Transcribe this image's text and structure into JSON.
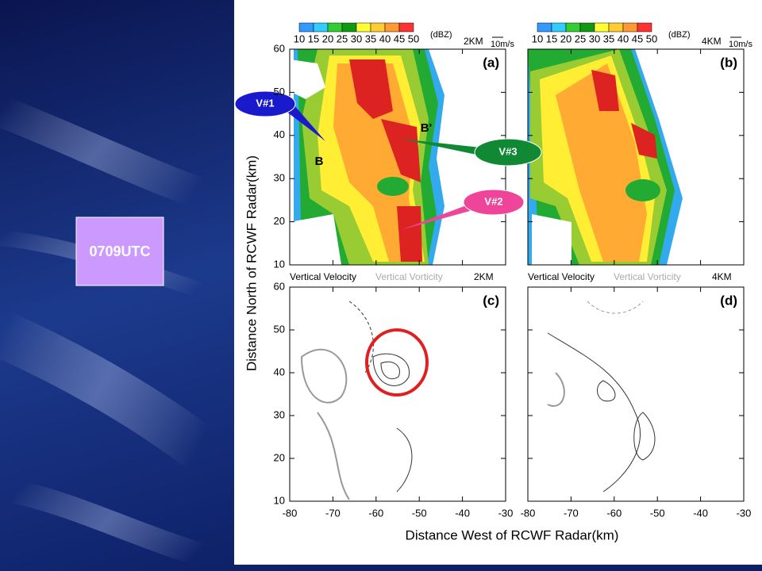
{
  "slide": {
    "time_label": "0709UTC"
  },
  "colorbar": {
    "labels": [
      "10",
      "15",
      "20",
      "25",
      "30",
      "35",
      "40",
      "45",
      "50"
    ],
    "unit": "(dBZ)"
  },
  "panels": [
    {
      "label": "(a)",
      "height": "2KM",
      "vector_scale": "10m/s"
    },
    {
      "label": "(b)",
      "height": "4KM",
      "vector_scale": "10m/s"
    },
    {
      "label": "(c)",
      "caption_left": "Vertical Velocity",
      "caption_right": "Vertical Vorticity",
      "caption_height": "2KM"
    },
    {
      "label": "(d)",
      "caption_left": "Vertical Velocity",
      "caption_right": "Vertical Vorticity",
      "caption_height": "4KM"
    }
  ],
  "axes": {
    "x_title": "Distance West of RCWF Radar(km)",
    "y_title": "Distance North of RCWF Radar(km)",
    "xticks": [
      -80,
      -70,
      -60,
      -50,
      -40,
      -30
    ],
    "yticks": [
      60,
      50,
      40,
      30,
      20,
      10
    ]
  },
  "callouts": [
    {
      "label": "V#1"
    },
    {
      "label": "V#3"
    },
    {
      "label": "V#2"
    }
  ],
  "section_labels": [
    "B",
    "B'"
  ]
}
